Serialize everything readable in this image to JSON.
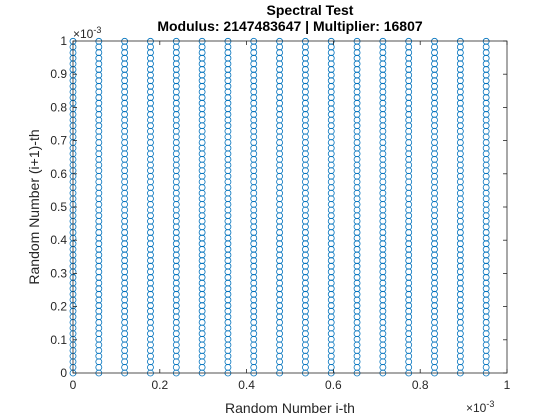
{
  "chart_data": {
    "type": "scatter",
    "title": "Spectral Test",
    "subtitle": "Modulus: 2147483647 | Multiplier: 16807",
    "xlabel": "Random Number i-th",
    "ylabel": "Random Number (i+1)-th",
    "x_exponent_base": "×10",
    "x_exponent_power": "-3",
    "y_exponent_base": "×10",
    "y_exponent_power": "-3",
    "xlim": [
      0,
      1
    ],
    "ylim": [
      0,
      1
    ],
    "x_ticks": [
      0,
      0.2,
      0.4,
      0.6,
      0.8,
      1
    ],
    "y_ticks": [
      0,
      0.1,
      0.2,
      0.3,
      0.4,
      0.5,
      0.6,
      0.7,
      0.8,
      0.9,
      1
    ],
    "x_tick_labels": [
      "0",
      "0.2",
      "0.4",
      "0.6",
      "0.8",
      "1"
    ],
    "y_tick_labels": [
      "0",
      "0.1",
      "0.2",
      "0.3",
      "0.4",
      "0.5",
      "0.6",
      "0.7",
      "0.8",
      "0.9",
      "1"
    ],
    "grid": false,
    "marker": "open-circle",
    "marker_color": "#0072BD",
    "column_x_values": [
      0,
      0.0595,
      0.119,
      0.1785,
      0.238,
      0.2975,
      0.357,
      0.4165,
      0.476,
      0.5355,
      0.595,
      0.6545,
      0.714,
      0.7735,
      0.833,
      0.8925,
      0.952
    ],
    "column_y_min": 0,
    "column_y_max": 0.999
  }
}
